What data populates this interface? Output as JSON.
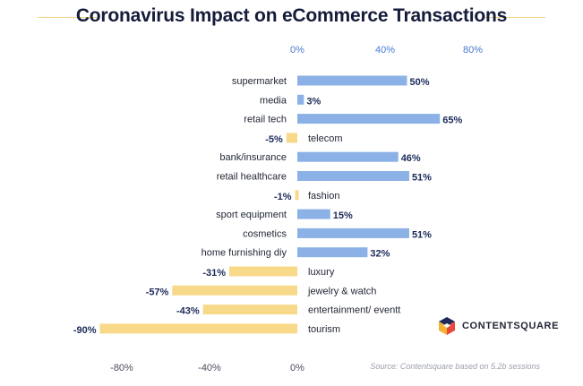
{
  "title": "Coronavirus Impact on eCommerce Transactions",
  "source": "Source: Contentsquare based on 5.2b sessions",
  "brand": {
    "name": "CONTENTSQUARE",
    "logo_icon": "contentsquare-logo-icon"
  },
  "colors": {
    "positive": "#8cb1e6",
    "negative": "#f8d98a",
    "title_rule": "#f1d48a"
  },
  "chart_data": {
    "type": "bar",
    "orientation": "horizontal",
    "title": "Coronavirus Impact on eCommerce Transactions",
    "categories": [
      "supermarket",
      "media",
      "retail tech",
      "telecom",
      "bank/insurance",
      "retail healthcare",
      "fashion",
      "sport equipment",
      "cosmetics",
      "home furnishing diy",
      "luxury",
      "jewelry & watch",
      "entertainment/ eventt",
      "tourism"
    ],
    "values": [
      50,
      3,
      65,
      -5,
      46,
      51,
      -1,
      15,
      51,
      32,
      -31,
      -57,
      -43,
      -90
    ],
    "value_labels": [
      "50%",
      "3%",
      "65%",
      "-5%",
      "46%",
      "51%",
      "-1%",
      "15%",
      "51%",
      "32%",
      "-31%",
      "-57%",
      "-43%",
      "-90%"
    ],
    "top_axis_ticks": [
      {
        "value": 0,
        "label": "0%"
      },
      {
        "value": 40,
        "label": "40%"
      },
      {
        "value": 80,
        "label": "80%"
      }
    ],
    "bottom_axis_ticks": [
      {
        "value": -80,
        "label": "-80%"
      },
      {
        "value": -40,
        "label": "-40%"
      },
      {
        "value": 0,
        "label": "0%"
      }
    ],
    "xlim": [
      -90,
      80
    ],
    "grid": false,
    "legend": "none"
  }
}
